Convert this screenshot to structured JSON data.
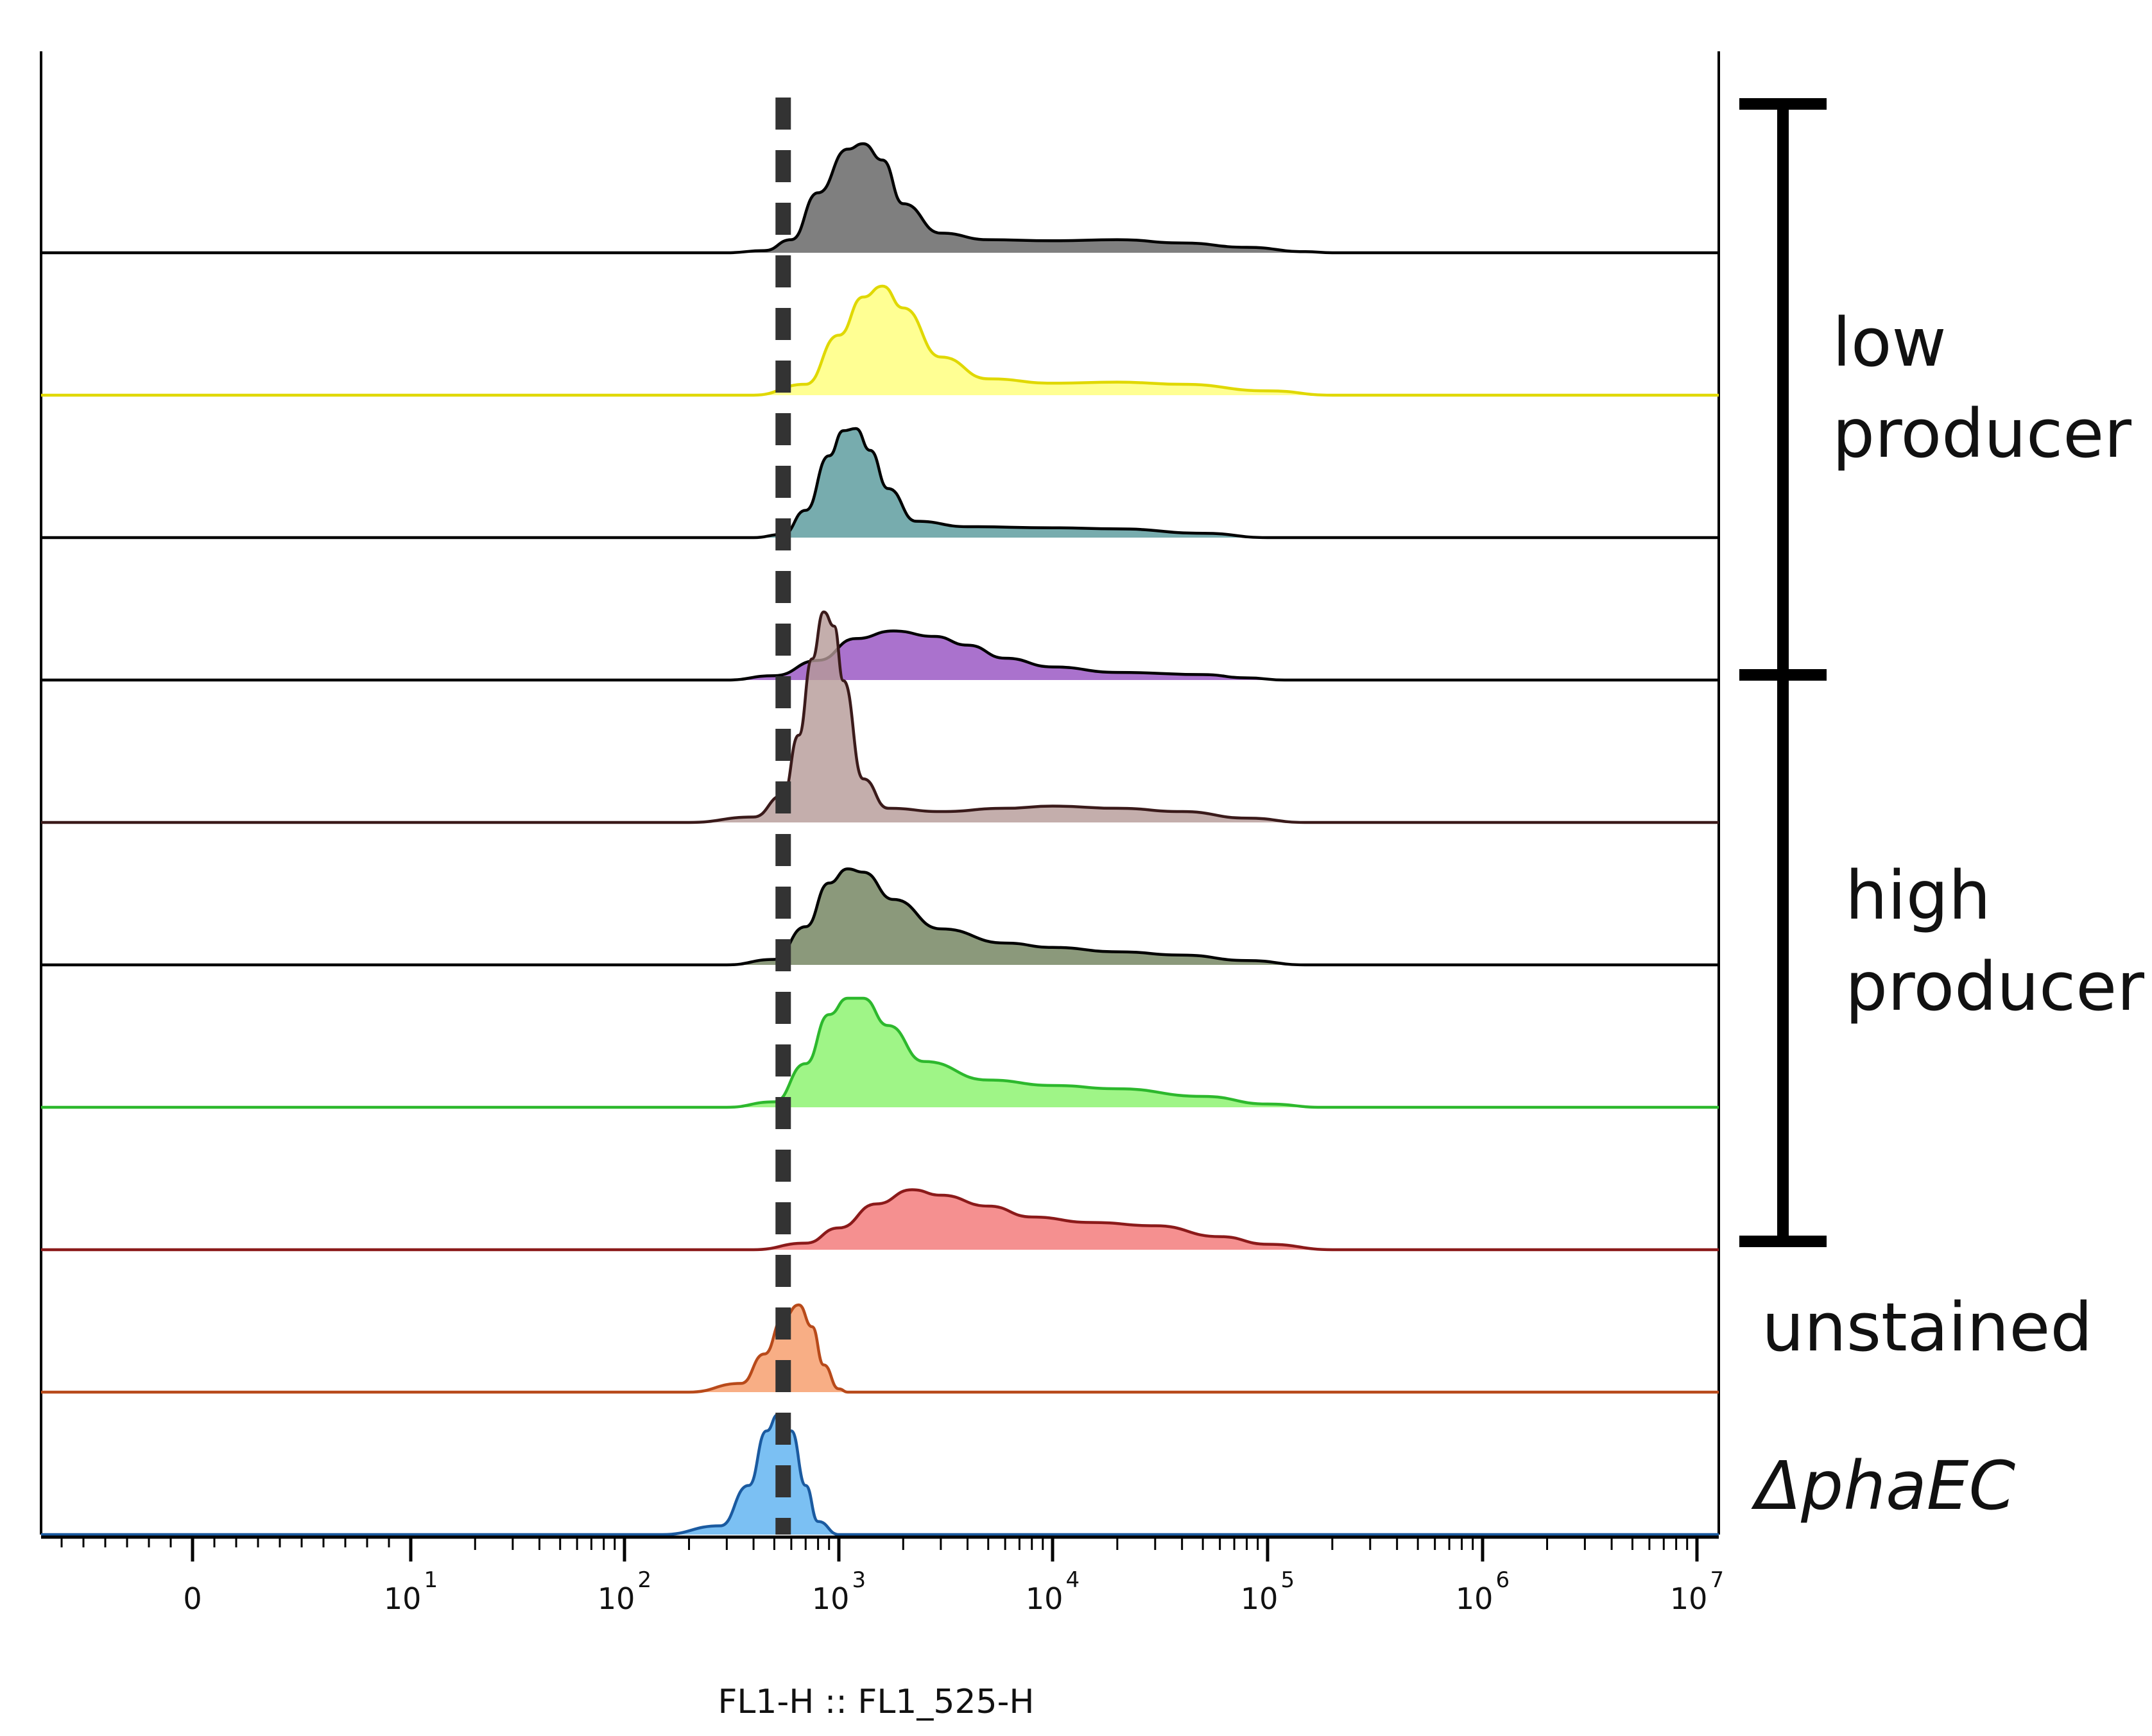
{
  "chart_data": {
    "type": "area",
    "x_scale": "biexponential",
    "xlabel": "FL1-H :: FL1_525-H",
    "x_ticks": [
      {
        "base": "0",
        "exp": ""
      },
      {
        "base": "10",
        "exp": "1"
      },
      {
        "base": "10",
        "exp": "2"
      },
      {
        "base": "10",
        "exp": "3"
      },
      {
        "base": "10",
        "exp": "4"
      },
      {
        "base": "10",
        "exp": "5"
      },
      {
        "base": "10",
        "exp": "6"
      },
      {
        "base": "10",
        "exp": "7"
      }
    ],
    "threshold_line": {
      "x": 550,
      "style": "dashed"
    },
    "groups": [
      {
        "lines": [
          "low",
          "producer"
        ],
        "italic": false,
        "rows": [
          1,
          4
        ],
        "bracket": true
      },
      {
        "lines": [
          "high",
          "producer"
        ],
        "italic": false,
        "rows": [
          4,
          8
        ],
        "bracket": true
      },
      {
        "lines": [
          "unstained"
        ],
        "italic": false,
        "rows": [
          9,
          9
        ],
        "bracket": false
      },
      {
        "lines": [
          "ΔphaEC"
        ],
        "italic": true,
        "rows": [
          10,
          10
        ],
        "bracket": false
      }
    ],
    "series": [
      {
        "row": 1,
        "fill": "#7f7f7f",
        "stroke": "#000000",
        "opacity": 1.0,
        "points": [
          [
            300,
            0
          ],
          [
            450,
            0.02
          ],
          [
            600,
            0.12
          ],
          [
            800,
            0.55
          ],
          [
            1100,
            0.95
          ],
          [
            1300,
            1.0
          ],
          [
            1600,
            0.85
          ],
          [
            2000,
            0.45
          ],
          [
            3000,
            0.18
          ],
          [
            5000,
            0.12
          ],
          [
            10000,
            0.11
          ],
          [
            20000,
            0.12
          ],
          [
            40000,
            0.09
          ],
          [
            80000,
            0.05
          ],
          [
            150000,
            0.01
          ],
          [
            200000,
            0
          ]
        ]
      },
      {
        "row": 2,
        "fill": "#ffff80",
        "stroke": "#e0d800",
        "opacity": 0.85,
        "points": [
          [
            400,
            0
          ],
          [
            700,
            0.1
          ],
          [
            1000,
            0.55
          ],
          [
            1300,
            0.9
          ],
          [
            1600,
            1.0
          ],
          [
            2000,
            0.8
          ],
          [
            3000,
            0.35
          ],
          [
            5000,
            0.15
          ],
          [
            10000,
            0.11
          ],
          [
            20000,
            0.12
          ],
          [
            40000,
            0.1
          ],
          [
            100000,
            0.04
          ],
          [
            200000,
            0
          ]
        ]
      },
      {
        "row": 3,
        "fill": "#5f9ea0",
        "stroke": "#000000",
        "opacity": 0.85,
        "points": [
          [
            400,
            0
          ],
          [
            550,
            0.03
          ],
          [
            700,
            0.25
          ],
          [
            900,
            0.75
          ],
          [
            1050,
            0.98
          ],
          [
            1200,
            1.0
          ],
          [
            1400,
            0.8
          ],
          [
            1700,
            0.45
          ],
          [
            2300,
            0.15
          ],
          [
            4000,
            0.1
          ],
          [
            10000,
            0.09
          ],
          [
            20000,
            0.08
          ],
          [
            50000,
            0.04
          ],
          [
            100000,
            0
          ]
        ]
      },
      {
        "row": 4,
        "fill": "#9b59c4",
        "stroke": "#000000",
        "opacity": 0.85,
        "points": [
          [
            300,
            0
          ],
          [
            500,
            0.04
          ],
          [
            800,
            0.18
          ],
          [
            1200,
            0.38
          ],
          [
            1800,
            0.45
          ],
          [
            2800,
            0.4
          ],
          [
            4000,
            0.32
          ],
          [
            6000,
            0.2
          ],
          [
            10000,
            0.12
          ],
          [
            20000,
            0.07
          ],
          [
            50000,
            0.05
          ],
          [
            80000,
            0.02
          ],
          [
            120000,
            0
          ]
        ]
      },
      {
        "row": 5,
        "fill": "#b59a97",
        "stroke": "#3a1a1a",
        "opacity": 0.8,
        "points": [
          [
            200,
            0
          ],
          [
            400,
            0.05
          ],
          [
            550,
            0.25
          ],
          [
            650,
            0.8
          ],
          [
            750,
            1.5
          ],
          [
            850,
            1.93
          ],
          [
            950,
            1.8
          ],
          [
            1050,
            1.3
          ],
          [
            1300,
            0.4
          ],
          [
            1700,
            0.13
          ],
          [
            3000,
            0.1
          ],
          [
            6000,
            0.13
          ],
          [
            10000,
            0.15
          ],
          [
            20000,
            0.13
          ],
          [
            40000,
            0.1
          ],
          [
            80000,
            0.04
          ],
          [
            150000,
            0
          ]
        ]
      },
      {
        "row": 6,
        "fill": "#6e7f5a",
        "stroke": "#000000",
        "opacity": 0.8,
        "points": [
          [
            300,
            0
          ],
          [
            500,
            0.05
          ],
          [
            700,
            0.35
          ],
          [
            900,
            0.75
          ],
          [
            1100,
            0.88
          ],
          [
            1300,
            0.85
          ],
          [
            1800,
            0.6
          ],
          [
            3000,
            0.33
          ],
          [
            6000,
            0.2
          ],
          [
            10000,
            0.16
          ],
          [
            20000,
            0.12
          ],
          [
            40000,
            0.09
          ],
          [
            80000,
            0.04
          ],
          [
            150000,
            0
          ]
        ]
      },
      {
        "row": 7,
        "fill": "#7ff25f",
        "stroke": "#2db82d",
        "opacity": 0.75,
        "points": [
          [
            300,
            0
          ],
          [
            500,
            0.05
          ],
          [
            700,
            0.4
          ],
          [
            900,
            0.85
          ],
          [
            1100,
            1.0
          ],
          [
            1300,
            1.0
          ],
          [
            1700,
            0.75
          ],
          [
            2500,
            0.42
          ],
          [
            5000,
            0.25
          ],
          [
            10000,
            0.2
          ],
          [
            20000,
            0.17
          ],
          [
            50000,
            0.1
          ],
          [
            100000,
            0.03
          ],
          [
            180000,
            0
          ]
        ]
      },
      {
        "row": 8,
        "fill": "#f26b6b",
        "stroke": "#8b1a1a",
        "opacity": 0.75,
        "points": [
          [
            400,
            0
          ],
          [
            700,
            0.06
          ],
          [
            1000,
            0.2
          ],
          [
            1500,
            0.42
          ],
          [
            2200,
            0.55
          ],
          [
            3000,
            0.5
          ],
          [
            5000,
            0.4
          ],
          [
            8000,
            0.3
          ],
          [
            15000,
            0.25
          ],
          [
            30000,
            0.22
          ],
          [
            60000,
            0.12
          ],
          [
            100000,
            0.05
          ],
          [
            200000,
            0
          ]
        ]
      },
      {
        "row": 9,
        "fill": "#f7a070",
        "stroke": "#b84a1a",
        "opacity": 0.85,
        "points": [
          [
            200,
            0
          ],
          [
            350,
            0.08
          ],
          [
            450,
            0.35
          ],
          [
            550,
            0.68
          ],
          [
            650,
            0.8
          ],
          [
            750,
            0.6
          ],
          [
            850,
            0.25
          ],
          [
            1000,
            0.03
          ],
          [
            1100,
            0
          ]
        ]
      },
      {
        "row": 10,
        "fill": "#5ab0f0",
        "stroke": "#1a5aa0",
        "opacity": 0.8,
        "points": [
          [
            150,
            0
          ],
          [
            280,
            0.08
          ],
          [
            380,
            0.45
          ],
          [
            460,
            0.95
          ],
          [
            520,
            1.1
          ],
          [
            600,
            0.95
          ],
          [
            700,
            0.45
          ],
          [
            800,
            0.12
          ],
          [
            1000,
            0
          ]
        ]
      }
    ]
  }
}
